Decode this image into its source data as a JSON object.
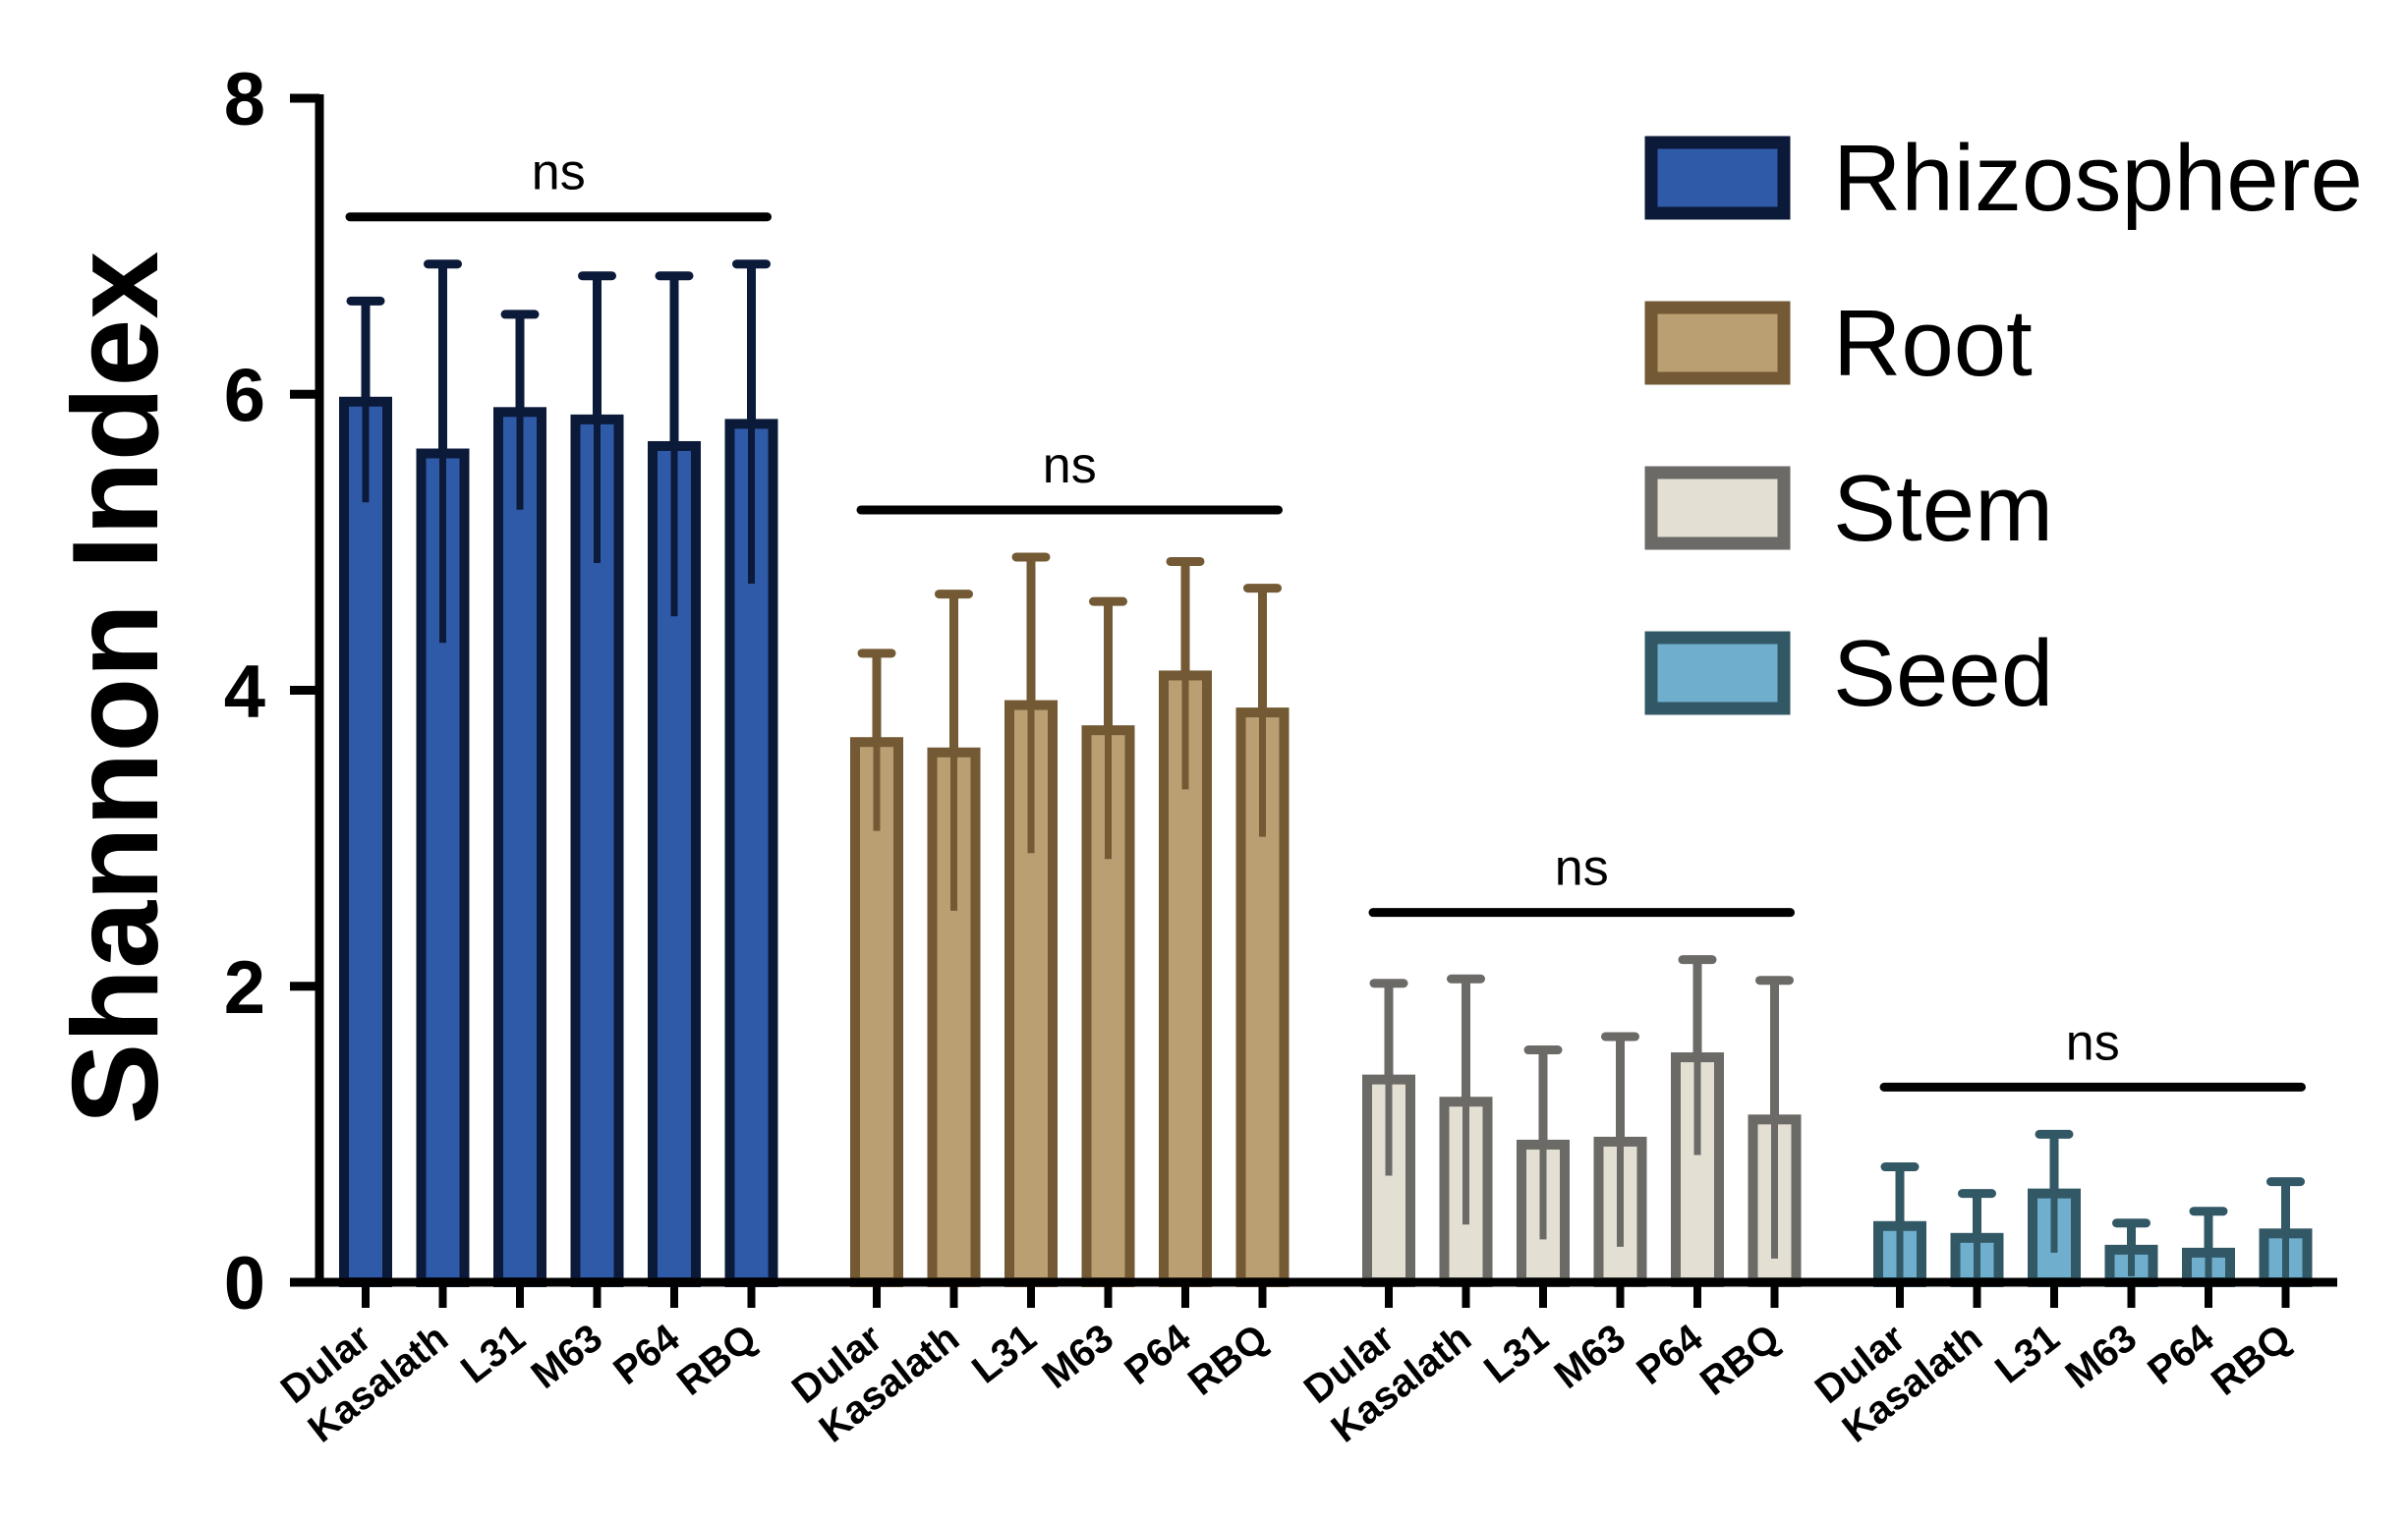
{
  "chart_data": {
    "type": "bar",
    "ylabel": "Shannon Index",
    "xlabel": "",
    "ylim": [
      0,
      8
    ],
    "yticks": [
      0,
      2,
      4,
      6,
      8
    ],
    "categories": [
      "Dular",
      "Kasalath",
      "L31",
      "M63",
      "P64",
      "RBQ"
    ],
    "legend_position": "top-right",
    "series": [
      {
        "name": "Rhizosphere",
        "fill": "#2f5aa8",
        "stroke": "#0c1a3a",
        "values": [
          5.95,
          5.6,
          5.88,
          5.83,
          5.65,
          5.8
        ],
        "error": [
          0.68,
          1.28,
          0.66,
          0.97,
          1.15,
          1.08
        ],
        "significance": "ns"
      },
      {
        "name": "Root",
        "fill": "#b99f72",
        "stroke": "#735a34",
        "values": [
          3.65,
          3.58,
          3.9,
          3.73,
          4.1,
          3.85
        ],
        "error": [
          0.6,
          1.07,
          1.0,
          0.87,
          0.77,
          0.84
        ],
        "significance": "ns"
      },
      {
        "name": "Stem",
        "fill": "#e4dfd3",
        "stroke": "#6b6a66",
        "values": [
          1.37,
          1.22,
          0.93,
          0.95,
          1.52,
          1.1
        ],
        "error": [
          0.65,
          0.83,
          0.64,
          0.71,
          0.66,
          0.94
        ],
        "significance": "ns"
      },
      {
        "name": "Seed",
        "fill": "#6faecc",
        "stroke": "#325866",
        "values": [
          0.38,
          0.3,
          0.6,
          0.22,
          0.2,
          0.33
        ],
        "error": [
          0.4,
          0.3,
          0.4,
          0.18,
          0.28,
          0.35
        ],
        "significance": "ns"
      }
    ]
  }
}
